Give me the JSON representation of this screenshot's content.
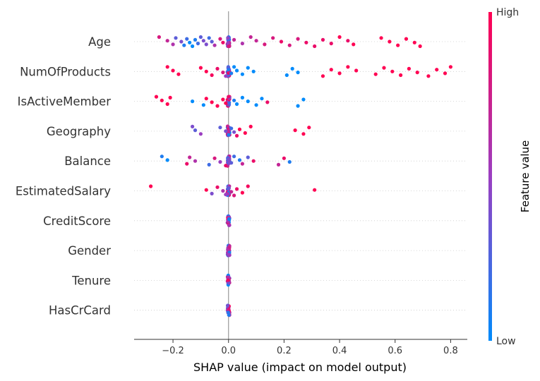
{
  "chart_data": {
    "type": "scatter",
    "subtype": "shap-beeswarm",
    "title": "",
    "xlabel": "SHAP value (impact on model output)",
    "ylabel": "",
    "xlim": [
      -0.34,
      0.86
    ],
    "xticks": [
      -0.2,
      0.0,
      0.2,
      0.4,
      0.6,
      0.8
    ],
    "xtick_labels": [
      "−0.2",
      "0.0",
      "0.2",
      "0.4",
      "0.6",
      "0.8"
    ],
    "grid": false,
    "colorbar": {
      "title": "Feature value",
      "high_label": "High",
      "low_label": "Low",
      "low_color": "#008bfb",
      "mid_color": "#9b3ec1",
      "high_color": "#ff0052"
    },
    "features": [
      {
        "name": "Age",
        "points": [
          [
            -0.25,
            0.8
          ],
          [
            -0.22,
            0.7
          ],
          [
            -0.2,
            0.6
          ],
          [
            -0.19,
            0.3
          ],
          [
            -0.17,
            0.4
          ],
          [
            -0.16,
            0.1
          ],
          [
            -0.15,
            0.2
          ],
          [
            -0.14,
            0.0
          ],
          [
            -0.13,
            0.0
          ],
          [
            -0.12,
            0.1
          ],
          [
            -0.11,
            0.2
          ],
          [
            -0.1,
            0.3
          ],
          [
            -0.09,
            0.4
          ],
          [
            -0.08,
            0.4
          ],
          [
            -0.07,
            0.2
          ],
          [
            -0.06,
            0.3
          ],
          [
            -0.05,
            0.6
          ],
          [
            -0.03,
            0.8
          ],
          [
            -0.02,
            0.9
          ],
          [
            0.0,
            0.8
          ],
          [
            0.02,
            0.7
          ],
          [
            0.05,
            0.6
          ],
          [
            0.08,
            0.7
          ],
          [
            0.1,
            0.7
          ],
          [
            0.13,
            0.8
          ],
          [
            0.16,
            0.8
          ],
          [
            0.19,
            0.9
          ],
          [
            0.22,
            0.8
          ],
          [
            0.25,
            0.8
          ],
          [
            0.28,
            0.9
          ],
          [
            0.31,
            0.9
          ],
          [
            0.34,
            0.9
          ],
          [
            0.37,
            0.9
          ],
          [
            0.4,
            1.0
          ],
          [
            0.43,
            0.9
          ],
          [
            0.45,
            1.0
          ],
          [
            0.55,
            1.0
          ],
          [
            0.58,
            1.0
          ],
          [
            0.61,
            1.0
          ],
          [
            0.64,
            1.0
          ],
          [
            0.67,
            1.0
          ],
          [
            0.69,
            1.0
          ]
        ]
      },
      {
        "name": "NumOfProducts",
        "points": [
          [
            -0.22,
            1.0
          ],
          [
            -0.2,
            1.0
          ],
          [
            -0.18,
            1.0
          ],
          [
            -0.1,
            1.0
          ],
          [
            -0.08,
            1.0
          ],
          [
            -0.06,
            0.95
          ],
          [
            -0.04,
            0.9
          ],
          [
            -0.02,
            0.8
          ],
          [
            -0.01,
            0.5
          ],
          [
            0.0,
            0.1
          ],
          [
            0.01,
            0.1
          ],
          [
            0.02,
            0.0
          ],
          [
            0.03,
            0.0
          ],
          [
            0.05,
            0.0
          ],
          [
            0.07,
            0.0
          ],
          [
            0.09,
            0.0
          ],
          [
            0.21,
            0.0
          ],
          [
            0.23,
            0.0
          ],
          [
            0.25,
            0.0
          ],
          [
            0.34,
            1.0
          ],
          [
            0.37,
            1.0
          ],
          [
            0.4,
            1.0
          ],
          [
            0.43,
            1.0
          ],
          [
            0.46,
            1.0
          ],
          [
            0.53,
            1.0
          ],
          [
            0.56,
            1.0
          ],
          [
            0.59,
            1.0
          ],
          [
            0.62,
            1.0
          ],
          [
            0.65,
            1.0
          ],
          [
            0.68,
            1.0
          ],
          [
            0.72,
            1.0
          ],
          [
            0.75,
            1.0
          ],
          [
            0.78,
            1.0
          ],
          [
            0.8,
            1.0
          ]
        ]
      },
      {
        "name": "IsActiveMember",
        "points": [
          [
            -0.26,
            1.0
          ],
          [
            -0.24,
            1.0
          ],
          [
            -0.22,
            1.0
          ],
          [
            -0.21,
            1.0
          ],
          [
            -0.13,
            0.0
          ],
          [
            -0.09,
            0.0
          ],
          [
            -0.08,
            1.0
          ],
          [
            -0.06,
            1.0
          ],
          [
            -0.04,
            1.0
          ],
          [
            -0.02,
            1.0
          ],
          [
            -0.01,
            1.0
          ],
          [
            0.0,
            0.9
          ],
          [
            0.02,
            0.1
          ],
          [
            0.03,
            0.0
          ],
          [
            0.05,
            0.0
          ],
          [
            0.07,
            0.0
          ],
          [
            0.1,
            0.0
          ],
          [
            0.12,
            0.0
          ],
          [
            0.14,
            0.9
          ],
          [
            0.25,
            0.0
          ],
          [
            0.27,
            0.0
          ]
        ]
      },
      {
        "name": "Geography",
        "points": [
          [
            -0.13,
            0.4
          ],
          [
            -0.12,
            0.3
          ],
          [
            -0.1,
            0.5
          ],
          [
            -0.03,
            0.3
          ],
          [
            -0.01,
            0.4
          ],
          [
            0.0,
            0.1
          ],
          [
            0.01,
            0.2
          ],
          [
            0.02,
            0.4
          ],
          [
            0.03,
            0.9
          ],
          [
            0.04,
            1.0
          ],
          [
            0.06,
            1.0
          ],
          [
            0.08,
            1.0
          ],
          [
            0.24,
            1.0
          ],
          [
            0.27,
            1.0
          ],
          [
            0.29,
            1.0
          ]
        ]
      },
      {
        "name": "Balance",
        "points": [
          [
            -0.24,
            0.1
          ],
          [
            -0.22,
            0.0
          ],
          [
            -0.15,
            0.9
          ],
          [
            -0.14,
            0.7
          ],
          [
            -0.12,
            0.6
          ],
          [
            -0.07,
            0.2
          ],
          [
            -0.05,
            0.8
          ],
          [
            -0.03,
            0.5
          ],
          [
            -0.01,
            0.9
          ],
          [
            0.0,
            0.4
          ],
          [
            0.01,
            0.3
          ],
          [
            0.02,
            0.2
          ],
          [
            0.04,
            0.1
          ],
          [
            0.05,
            0.7
          ],
          [
            0.07,
            0.3
          ],
          [
            0.09,
            0.9
          ],
          [
            0.18,
            0.7
          ],
          [
            0.2,
            0.9
          ],
          [
            0.22,
            0.1
          ]
        ]
      },
      {
        "name": "EstimatedSalary",
        "points": [
          [
            -0.28,
            1.0
          ],
          [
            -0.08,
            1.0
          ],
          [
            -0.06,
            0.4
          ],
          [
            -0.04,
            0.9
          ],
          [
            -0.02,
            0.6
          ],
          [
            -0.01,
            0.5
          ],
          [
            0.0,
            0.3
          ],
          [
            0.01,
            0.7
          ],
          [
            0.02,
            0.8
          ],
          [
            0.03,
            0.9
          ],
          [
            0.05,
            1.0
          ],
          [
            0.07,
            0.95
          ],
          [
            0.31,
            1.0
          ]
        ]
      },
      {
        "name": "CreditScore",
        "points": []
      },
      {
        "name": "Gender",
        "points": []
      },
      {
        "name": "Tenure",
        "points": []
      },
      {
        "name": "HasCrCard",
        "points": []
      }
    ]
  }
}
